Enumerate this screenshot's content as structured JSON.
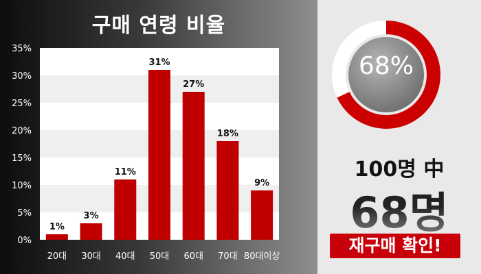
{
  "colors": {
    "bar": "#c00000",
    "accent": "#cc0000",
    "donut_center": "#8a8a8a"
  },
  "chart_data": {
    "type": "bar",
    "title": "구매 연령 비율",
    "categories": [
      "20대",
      "30대",
      "40대",
      "50대",
      "60대",
      "70대",
      "80대이상"
    ],
    "values": [
      1,
      3,
      11,
      31,
      27,
      18,
      9
    ],
    "value_labels": [
      "1%",
      "3%",
      "11%",
      "31%",
      "27%",
      "18%",
      "9%"
    ],
    "y_ticks": [
      0,
      5,
      10,
      15,
      20,
      25,
      30,
      35
    ],
    "y_tick_labels": [
      "0%",
      "5%",
      "10%",
      "15%",
      "20%",
      "25%",
      "30%",
      "35%"
    ],
    "ylim": [
      0,
      35
    ],
    "grid": "horizontal bands"
  },
  "donut": {
    "value": 68,
    "label": "68%"
  },
  "stats": {
    "line1": "100명 中",
    "line2": "68명",
    "badge": "재구매 확인!"
  }
}
